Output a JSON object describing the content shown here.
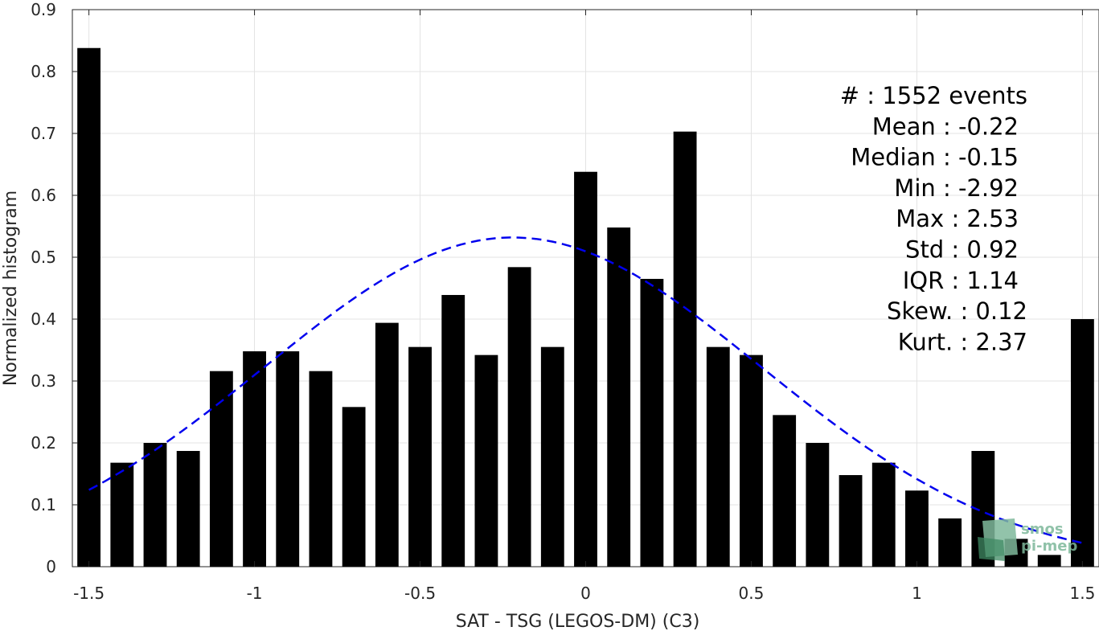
{
  "chart_data": {
    "type": "bar",
    "xlabel": "SAT - TSG (LEGOS-DM) (C3)",
    "ylabel": "Normalized histogram",
    "xlim": [
      -1.55,
      1.55
    ],
    "ylim": [
      0,
      0.9
    ],
    "xticks": [
      -1.5,
      -1,
      -0.5,
      0,
      0.5,
      1,
      1.5
    ],
    "xtick_labels": [
      "-1.5",
      "-1",
      "-0.5",
      "0",
      "0.5",
      "1",
      "1.5"
    ],
    "yticks": [
      0,
      0.1,
      0.2,
      0.3,
      0.4,
      0.5,
      0.6,
      0.7,
      0.8,
      0.9
    ],
    "ytick_labels": [
      "0",
      "0.1",
      "0.2",
      "0.3",
      "0.4",
      "0.5",
      "0.6",
      "0.7",
      "0.8",
      "0.9"
    ],
    "grid": true,
    "bin_width": 0.1,
    "bar_width": 0.07,
    "bar_color": "#000000",
    "x": [
      -1.5,
      -1.4,
      -1.3,
      -1.2,
      -1.1,
      -1.0,
      -0.9,
      -0.8,
      -0.7,
      -0.6,
      -0.5,
      -0.4,
      -0.3,
      -0.2,
      -0.1,
      0.0,
      0.1,
      0.2,
      0.3,
      0.4,
      0.5,
      0.6,
      0.7,
      0.8,
      0.9,
      1.0,
      1.1,
      1.2,
      1.3,
      1.4,
      1.5
    ],
    "values": [
      0.838,
      0.168,
      0.2,
      0.187,
      0.316,
      0.348,
      0.348,
      0.316,
      0.258,
      0.394,
      0.355,
      0.439,
      0.342,
      0.484,
      0.355,
      0.638,
      0.548,
      0.465,
      0.703,
      0.355,
      0.342,
      0.245,
      0.2,
      0.148,
      0.168,
      0.123,
      0.078,
      0.187,
      0.045,
      0.019,
      0.4
    ],
    "fit": {
      "type": "normal",
      "mean": -0.22,
      "std": 0.75,
      "scale": 1.0,
      "x_range": [
        -1.5,
        1.5
      ],
      "color": "#0000ee",
      "style": "dashed"
    },
    "annotations": [
      "#  : 1552 events",
      "Mean : -0.22",
      "Median : -0.15",
      "Min : -2.92",
      "Max : 2.53",
      "Std : 0.92",
      "IQR : 1.14",
      "Skew. : 0.12",
      "Kurt. : 2.37"
    ]
  },
  "logo": {
    "line1": "smos",
    "line2": "pi-mep"
  }
}
